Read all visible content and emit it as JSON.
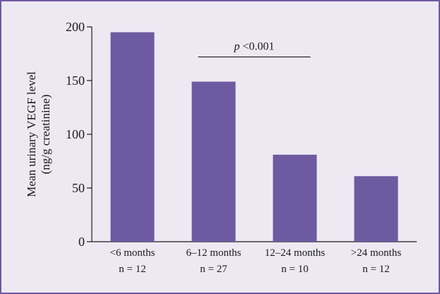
{
  "chart_data": {
    "type": "bar",
    "title": "",
    "ylabel_lines": [
      "Mean urinary VEGF level",
      "(ng/g creatinine)"
    ],
    "xlabel": "",
    "categories": [
      {
        "label": "<6 months",
        "n": "n = 12"
      },
      {
        "label": "6–12 months",
        "n": "n = 27"
      },
      {
        "label": "12–24 months",
        "n": "n = 10"
      },
      {
        "label": ">24 months",
        "n": "n = 12"
      }
    ],
    "values": [
      195,
      149,
      81,
      61
    ],
    "ylim": [
      0,
      200
    ],
    "yticks": [
      0,
      50,
      100,
      150,
      200
    ],
    "bar_color": "#6e5aa0",
    "annotation": {
      "prefix": "p",
      "text": " <0.001",
      "from_category": 1,
      "to_category": 2
    },
    "grid": false,
    "legend": "none"
  },
  "colors": {
    "frame": "#6e5aa0",
    "background": "#ede9f3",
    "bar": "#6e5aa0"
  }
}
